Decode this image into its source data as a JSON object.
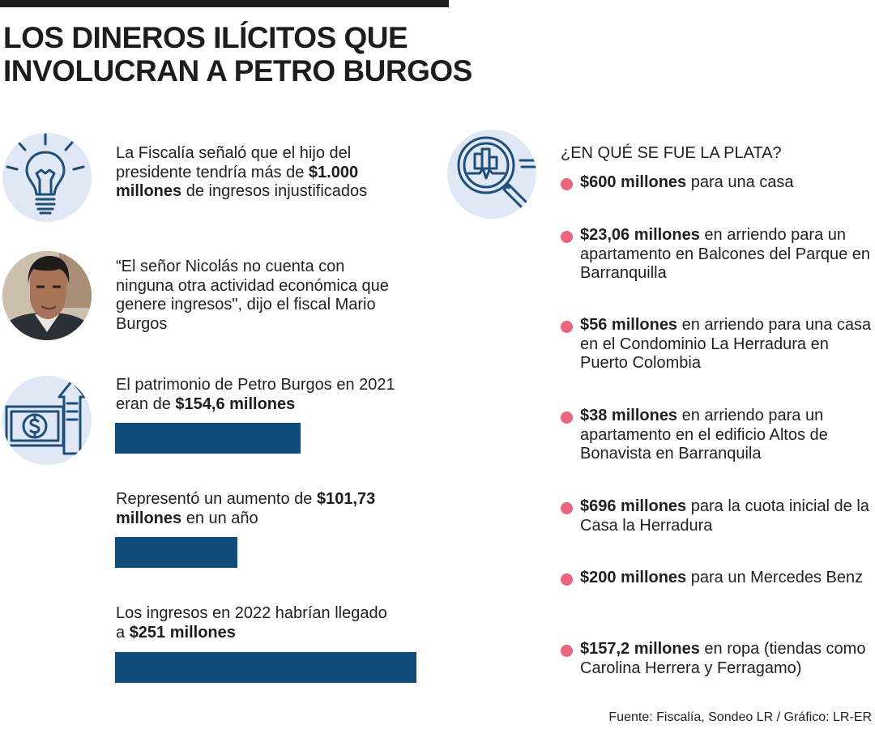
{
  "title": {
    "line1": "LOS DINEROS ILÍCITOS QUE",
    "line2": "INVOLUCRAN A PETRO BURGOS"
  },
  "left": {
    "fact1": {
      "icon": "lightbulb-icon",
      "text_a": "La Fiscalía señaló que el hijo del presidente tendría más de ",
      "bold": "$1.000 millones",
      "text_b": " de ingresos injustificados"
    },
    "quote": {
      "image": "prosecutor-photo",
      "text": "“El señor Nicolás no cuenta con ninguna otra actividad económica que genere ingresos\", dijo el fiscal Mario Burgos"
    },
    "patrimonio": {
      "icon": "money-growth-icon",
      "text_a": "El patrimonio de Petro Burgos en 2021 eran de ",
      "bold": "$154,6 millones",
      "value": 154.6
    },
    "aumento": {
      "text_a": "Representó un aumento de ",
      "bold": "$101,73 millones",
      "text_b": " en un año",
      "value": 101.73
    },
    "ingresos": {
      "text_a": "Los ingresos en 2022 habrían llegado a ",
      "bold": "$251 millones",
      "value": 251
    }
  },
  "right": {
    "icon": "magnifier-chart-icon",
    "header": "¿EN QUÉ SE FUE LA PLATA?",
    "items": [
      {
        "bold": "$600 millones",
        "rest": " para una casa"
      },
      {
        "bold": "$23,06 millones",
        "rest": " en arriendo para un apartamento en Balcones del Parque en Barranquilla"
      },
      {
        "bold": "$56 millones",
        "rest": " en arriendo para una casa en el Condominio La Herradura en Puerto Colombia"
      },
      {
        "bold": "$38 millones",
        "rest": " en arriendo para un apartamento en el edificio Altos de Bonavista en Barranquila"
      },
      {
        "bold": "$696 millones",
        "rest": " para la cuota inicial de la Casa la Herradura"
      },
      {
        "bold": "$200 millones",
        "rest": " para un Mercedes Benz"
      },
      {
        "bold": "$157,2 millones",
        "rest": " en ropa (tiendas como Carolina Herrera y Ferragamo)"
      }
    ]
  },
  "source": "Fuente: Fiscalía, Sondeo LR / Gráfico: LR-ER",
  "colors": {
    "bar": "#0f4c7c",
    "bullet": "#e8657b",
    "icon_bg": "#dfe8f4",
    "icon_stroke": "#1f4e79"
  }
}
